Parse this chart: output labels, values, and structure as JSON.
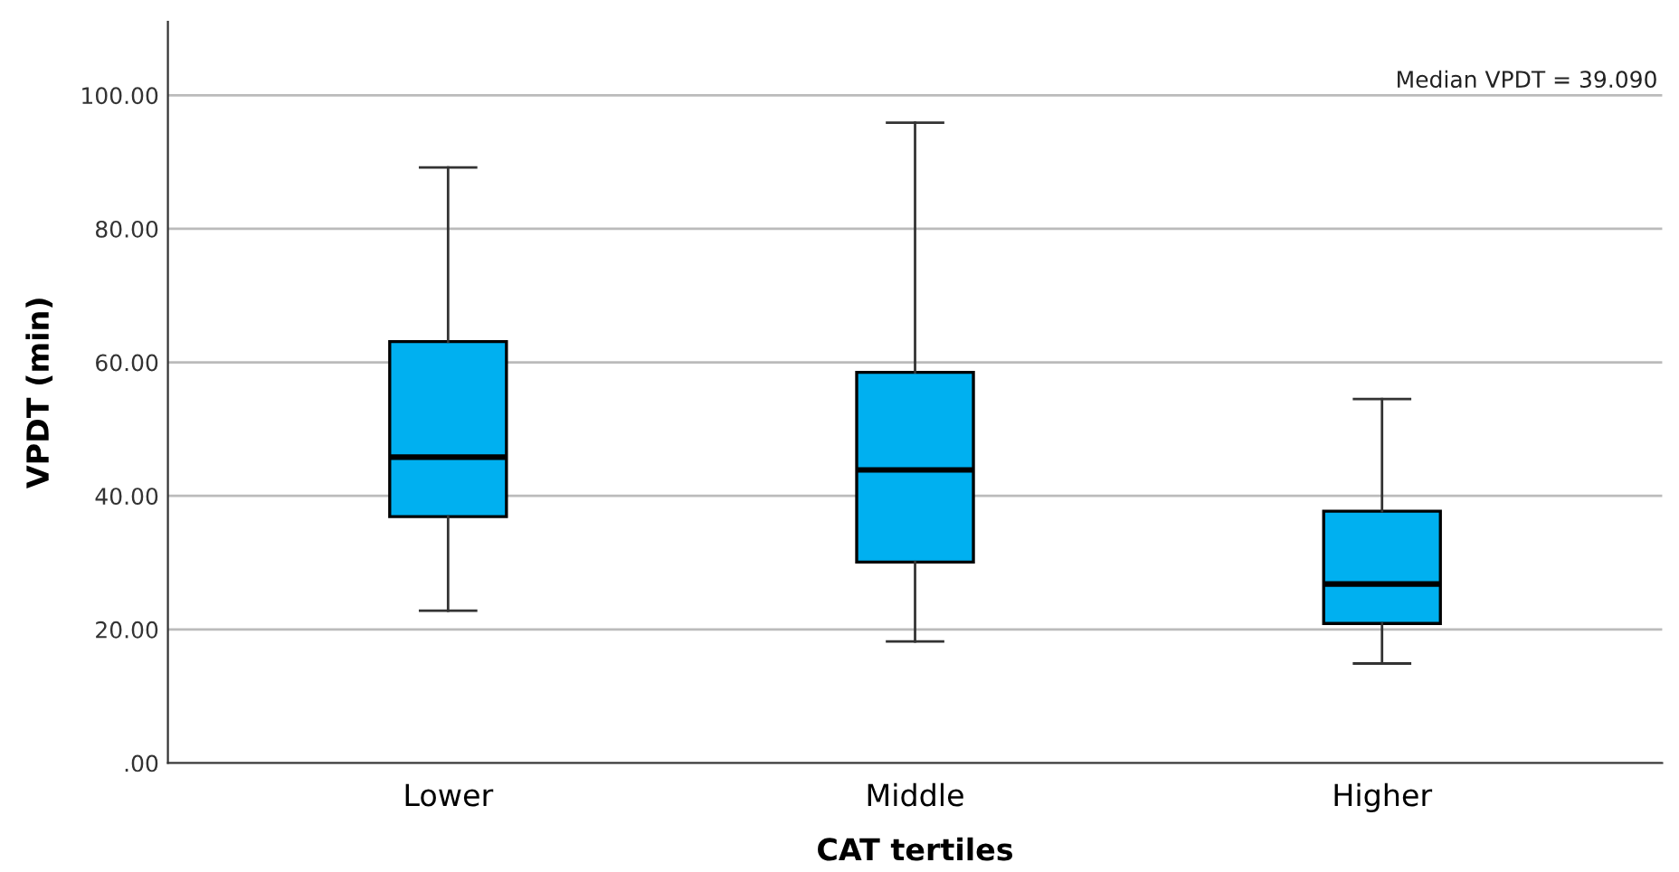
{
  "chart_data": {
    "type": "box",
    "xlabel": "CAT tertiles",
    "ylabel": "VPDT (min)",
    "categories": [
      "Lower",
      "Middle",
      "Higher"
    ],
    "boxes": [
      {
        "low": 22.8,
        "q1": 36.9,
        "median": 45.8,
        "q3": 63.1,
        "high": 89.2
      },
      {
        "low": 18.2,
        "q1": 30.1,
        "median": 43.9,
        "q3": 58.5,
        "high": 95.9
      },
      {
        "low": 14.9,
        "q1": 20.9,
        "median": 26.8,
        "q3": 37.7,
        "high": 54.5
      }
    ],
    "color": "#00b0f0",
    "ylim": [
      0,
      111
    ],
    "yticks": [
      {
        "value": 0,
        "label": ".00"
      },
      {
        "value": 20,
        "label": "20.00"
      },
      {
        "value": 40,
        "label": "40.00"
      },
      {
        "value": 60,
        "label": "60.00"
      },
      {
        "value": 80,
        "label": "80.00"
      },
      {
        "value": 100,
        "label": "100.00"
      }
    ],
    "grid": "y",
    "annotations": [
      "Median VPDT = 39.090"
    ]
  }
}
